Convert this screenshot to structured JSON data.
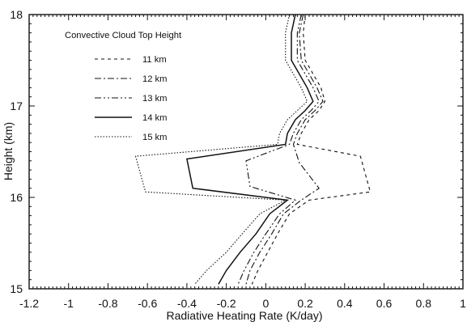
{
  "chart_data": {
    "type": "line",
    "title": "",
    "xlabel": "Radiative Heating Rate (K/day)",
    "ylabel": "Height (km)",
    "xlim": [
      -1.2,
      1
    ],
    "ylim": [
      15,
      18
    ],
    "x_ticks": [
      -1.2,
      -1,
      -0.8,
      -0.6,
      -0.4,
      -0.2,
      0,
      0.2,
      0.4,
      0.6,
      0.8,
      1
    ],
    "x_tick_labels": [
      "-1.2",
      "-1",
      "-0.8",
      "-0.6",
      "-0.4",
      "-0.2",
      "0",
      "0.2",
      "0.4",
      "0.6",
      "0.8",
      "1"
    ],
    "y_ticks": [
      15,
      16,
      17,
      18
    ],
    "y_tick_labels": [
      "15",
      "16",
      "17",
      "18"
    ],
    "grid": false,
    "legend": {
      "title": "Convective Cloud Top Height",
      "placement": "top-left"
    },
    "series": [
      {
        "name": "11 km",
        "dash": "4,4",
        "color": "#111111",
        "points": [
          {
            "x": 0.2,
            "y": 18.0
          },
          {
            "x": 0.19,
            "y": 17.8
          },
          {
            "x": 0.2,
            "y": 17.5
          },
          {
            "x": 0.28,
            "y": 17.2
          },
          {
            "x": 0.3,
            "y": 17.05
          },
          {
            "x": 0.27,
            "y": 16.95
          },
          {
            "x": 0.22,
            "y": 16.85
          },
          {
            "x": 0.18,
            "y": 16.7
          },
          {
            "x": 0.16,
            "y": 16.58
          },
          {
            "x": 0.48,
            "y": 16.45
          },
          {
            "x": 0.53,
            "y": 16.06
          },
          {
            "x": 0.22,
            "y": 15.97
          },
          {
            "x": 0.12,
            "y": 15.82
          },
          {
            "x": 0.06,
            "y": 15.6
          },
          {
            "x": 0.01,
            "y": 15.4
          },
          {
            "x": -0.04,
            "y": 15.2
          },
          {
            "x": -0.07,
            "y": 15.05
          }
        ]
      },
      {
        "name": "12 km",
        "dash": "8,3,2,3",
        "color": "#111111",
        "points": [
          {
            "x": 0.19,
            "y": 18.0
          },
          {
            "x": 0.17,
            "y": 17.8
          },
          {
            "x": 0.18,
            "y": 17.5
          },
          {
            "x": 0.26,
            "y": 17.2
          },
          {
            "x": 0.29,
            "y": 17.05
          },
          {
            "x": 0.25,
            "y": 16.95
          },
          {
            "x": 0.2,
            "y": 16.85
          },
          {
            "x": 0.16,
            "y": 16.7
          },
          {
            "x": 0.14,
            "y": 16.58
          },
          {
            "x": 0.17,
            "y": 16.38
          },
          {
            "x": 0.27,
            "y": 16.1
          },
          {
            "x": 0.18,
            "y": 15.97
          },
          {
            "x": 0.09,
            "y": 15.82
          },
          {
            "x": 0.03,
            "y": 15.6
          },
          {
            "x": -0.03,
            "y": 15.4
          },
          {
            "x": -0.08,
            "y": 15.2
          },
          {
            "x": -0.1,
            "y": 15.05
          }
        ]
      },
      {
        "name": "13 km",
        "dash": "8,3,2,3,2,3",
        "color": "#111111",
        "points": [
          {
            "x": 0.18,
            "y": 18.0
          },
          {
            "x": 0.16,
            "y": 17.8
          },
          {
            "x": 0.16,
            "y": 17.5
          },
          {
            "x": 0.24,
            "y": 17.2
          },
          {
            "x": 0.27,
            "y": 17.05
          },
          {
            "x": 0.23,
            "y": 16.95
          },
          {
            "x": 0.18,
            "y": 16.85
          },
          {
            "x": 0.14,
            "y": 16.7
          },
          {
            "x": 0.12,
            "y": 16.58
          },
          {
            "x": -0.1,
            "y": 16.4
          },
          {
            "x": -0.08,
            "y": 16.12
          },
          {
            "x": 0.15,
            "y": 15.97
          },
          {
            "x": 0.07,
            "y": 15.82
          },
          {
            "x": 0.0,
            "y": 15.6
          },
          {
            "x": -0.06,
            "y": 15.4
          },
          {
            "x": -0.11,
            "y": 15.2
          },
          {
            "x": -0.14,
            "y": 15.05
          }
        ]
      },
      {
        "name": "14 km",
        "dash": "",
        "color": "#111111",
        "points": [
          {
            "x": 0.15,
            "y": 18.0
          },
          {
            "x": 0.13,
            "y": 17.8
          },
          {
            "x": 0.13,
            "y": 17.5
          },
          {
            "x": 0.21,
            "y": 17.2
          },
          {
            "x": 0.24,
            "y": 17.05
          },
          {
            "x": 0.2,
            "y": 16.95
          },
          {
            "x": 0.15,
            "y": 16.85
          },
          {
            "x": 0.11,
            "y": 16.7
          },
          {
            "x": 0.1,
            "y": 16.58
          },
          {
            "x": -0.4,
            "y": 16.42
          },
          {
            "x": -0.37,
            "y": 16.1
          },
          {
            "x": 0.11,
            "y": 15.97
          },
          {
            "x": 0.02,
            "y": 15.82
          },
          {
            "x": -0.05,
            "y": 15.6
          },
          {
            "x": -0.13,
            "y": 15.4
          },
          {
            "x": -0.2,
            "y": 15.2
          },
          {
            "x": -0.24,
            "y": 15.05
          }
        ]
      },
      {
        "name": "15 km",
        "dash": "1.5,2",
        "color": "#111111",
        "points": [
          {
            "x": 0.12,
            "y": 18.0
          },
          {
            "x": 0.1,
            "y": 17.8
          },
          {
            "x": 0.1,
            "y": 17.5
          },
          {
            "x": 0.18,
            "y": 17.2
          },
          {
            "x": 0.21,
            "y": 17.05
          },
          {
            "x": 0.16,
            "y": 16.95
          },
          {
            "x": 0.11,
            "y": 16.85
          },
          {
            "x": 0.07,
            "y": 16.7
          },
          {
            "x": 0.06,
            "y": 16.58
          },
          {
            "x": -0.66,
            "y": 16.45
          },
          {
            "x": -0.61,
            "y": 16.06
          },
          {
            "x": 0.1,
            "y": 15.97
          },
          {
            "x": -0.03,
            "y": 15.82
          },
          {
            "x": -0.12,
            "y": 15.6
          },
          {
            "x": -0.2,
            "y": 15.4
          },
          {
            "x": -0.3,
            "y": 15.2
          },
          {
            "x": -0.36,
            "y": 15.05
          }
        ]
      }
    ]
  }
}
